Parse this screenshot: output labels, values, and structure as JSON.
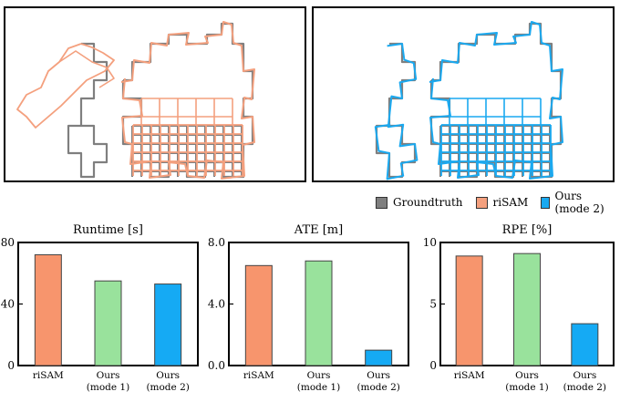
{
  "legend": {
    "items": [
      {
        "label": "Groundtruth",
        "color": "#7f7f7f"
      },
      {
        "label": "riSAM",
        "color": "#f4a07e"
      },
      {
        "label": "Ours (mode 2)",
        "color": "#1aa9f0"
      }
    ]
  },
  "trajectory_panels": [
    {
      "series": [
        "Groundtruth",
        "riSAM"
      ]
    },
    {
      "series": [
        "Groundtruth",
        "Ours (mode 2)"
      ]
    }
  ],
  "chart_data": [
    {
      "type": "bar",
      "title": "Runtime [s]",
      "categories": [
        "riSAM",
        "Ours (mode 1)",
        "Ours (mode 2)"
      ],
      "values": [
        72,
        55,
        53
      ],
      "colors": [
        "#f7956d",
        "#99e29c",
        "#15aaf4"
      ],
      "ylim": [
        0,
        80
      ],
      "yticks": [
        "0",
        "40",
        "80"
      ]
    },
    {
      "type": "bar",
      "title": "ATE [m]",
      "categories": [
        "riSAM",
        "Ours (mode 1)",
        "Ours (mode 2)"
      ],
      "values": [
        6.5,
        6.8,
        1.0
      ],
      "colors": [
        "#f7956d",
        "#99e29c",
        "#15aaf4"
      ],
      "ylim": [
        0,
        8
      ],
      "yticks": [
        "0.0",
        "4.0",
        "8.0"
      ]
    },
    {
      "type": "bar",
      "title": "RPE [%]",
      "categories": [
        "riSAM",
        "Ours (mode 1)",
        "Ours (mode 2)"
      ],
      "values": [
        8.9,
        9.1,
        3.4
      ],
      "colors": [
        "#f7956d",
        "#99e29c",
        "#15aaf4"
      ],
      "ylim": [
        0,
        10
      ],
      "yticks": [
        "0",
        "5",
        "10"
      ]
    }
  ]
}
